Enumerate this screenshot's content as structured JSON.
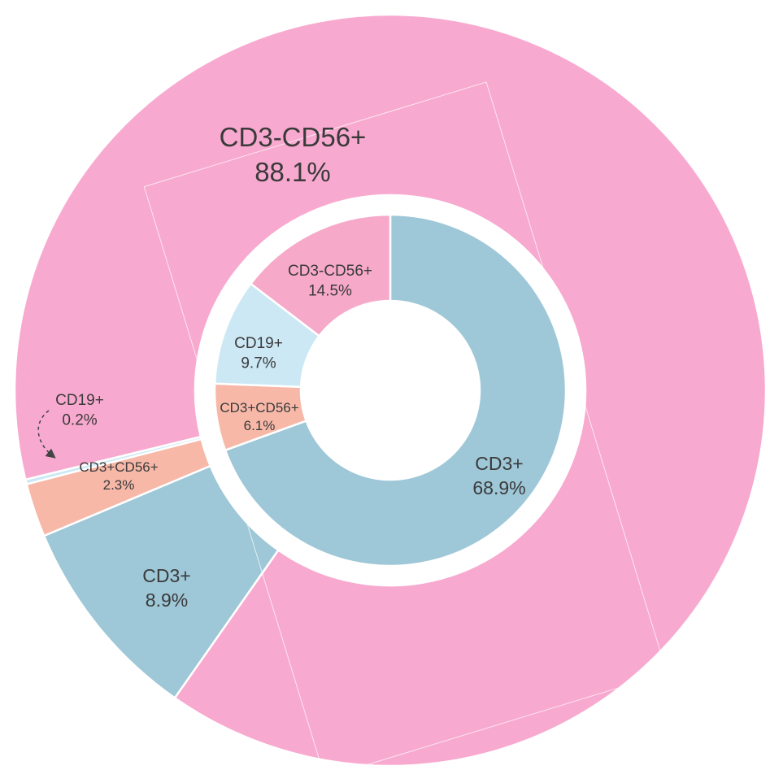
{
  "chart_data": {
    "type": "pie",
    "rings": [
      {
        "name": "",
        "slices": [
          {
            "label": "CD3+",
            "value_text": "68.9%",
            "value": 68.9,
            "color": "#9ec7d7"
          },
          {
            "label": "CD3+CD56+",
            "value_text": "6.1%",
            "value": 6.1,
            "color": "#f7b8a8"
          },
          {
            "label": "CD19+",
            "value_text": "9.7%",
            "value": 9.7,
            "color": "#cce8f5"
          },
          {
            "label": "CD3-CD56+",
            "value_text": "14.5%",
            "value": 14.5,
            "color": "#f6a9c9"
          }
        ]
      },
      {
        "name": "",
        "slices": [
          {
            "label": "CD3+",
            "value_text": "8.9%",
            "value": 8.9,
            "color": "#9ec7d7"
          },
          {
            "label": "CD3+CD56+",
            "value_text": "2.3%",
            "value": 2.3,
            "color": "#f7b8a8"
          },
          {
            "label": "CD19+",
            "value_text": "0.2%",
            "value": 0.2,
            "color": "#cce8f5"
          },
          {
            "label": "CD3-CD56+",
            "value_text": "88.1%",
            "value": 88.1,
            "color": "#f8a9cf"
          }
        ]
      }
    ],
    "title": "",
    "legend": "none"
  }
}
